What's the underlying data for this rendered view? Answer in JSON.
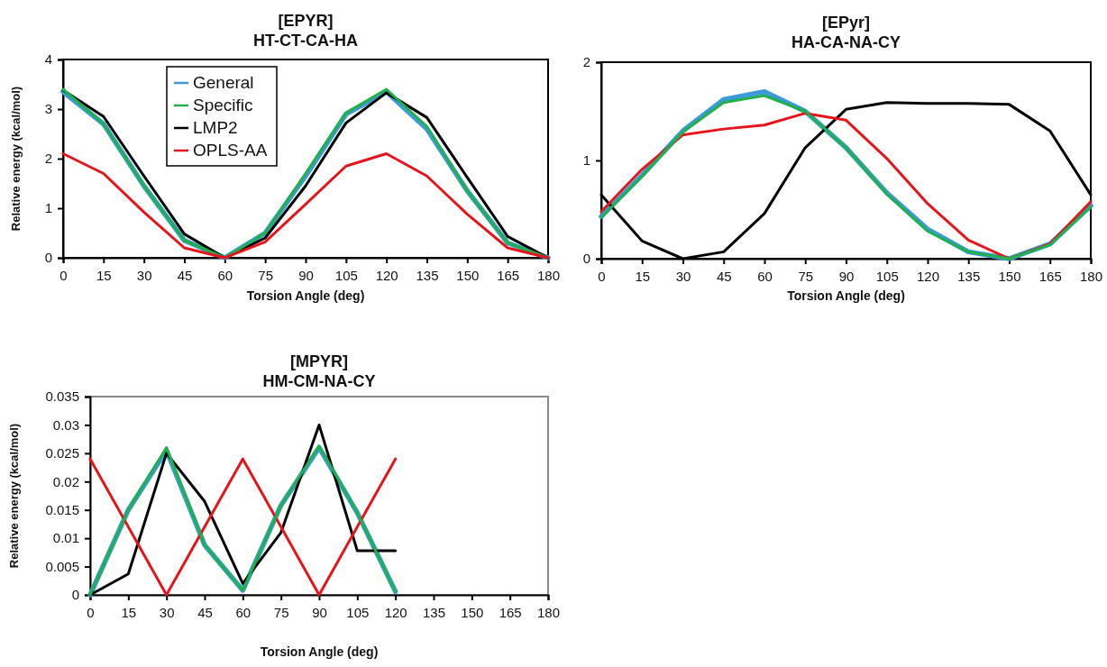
{
  "chart_data": [
    {
      "type": "line",
      "title": "[EPYR]\nHT-CT-CA-HA",
      "xlabel": "Torsion Angle (deg)",
      "ylabel": "Relative energy (kcal/mol)",
      "x": [
        0,
        15,
        30,
        45,
        60,
        75,
        90,
        105,
        120,
        135,
        150,
        165,
        180
      ],
      "xlim": [
        0,
        180
      ],
      "xticks": [
        0,
        15,
        30,
        45,
        60,
        75,
        90,
        105,
        120,
        135,
        150,
        165,
        180
      ],
      "ylim": [
        0,
        4
      ],
      "yticks": [
        0,
        1,
        2,
        3,
        4
      ],
      "legend": "top left",
      "series": [
        {
          "name": "General",
          "color": "#3d9ad8",
          "values": [
            3.35,
            2.7,
            1.45,
            0.35,
            0,
            0.5,
            1.65,
            2.9,
            3.35,
            2.6,
            1.35,
            0.3,
            0
          ]
        },
        {
          "name": "LMP2",
          "color": "#000000",
          "values": [
            3.38,
            2.85,
            1.65,
            0.48,
            0,
            0.4,
            1.45,
            2.72,
            3.33,
            2.83,
            1.62,
            0.43,
            0
          ]
        },
        {
          "name": "Specific",
          "color": "#1fb14a",
          "values": [
            3.4,
            2.7,
            1.45,
            0.35,
            0,
            0.5,
            1.7,
            2.92,
            3.4,
            2.65,
            1.35,
            0.3,
            0
          ]
        },
        {
          "name": "OPLS-AA",
          "color": "#e8141b",
          "values": [
            2.1,
            1.7,
            0.92,
            0.2,
            0,
            0.32,
            1.08,
            1.85,
            2.1,
            1.65,
            0.88,
            0.2,
            0
          ]
        }
      ]
    },
    {
      "type": "line",
      "title": "[EPyr]\nHA-CA-NA-CY",
      "xlabel": "Torsion Angle (deg)",
      "x": [
        0,
        15,
        30,
        45,
        60,
        75,
        90,
        105,
        120,
        135,
        150,
        165,
        180
      ],
      "xlim": [
        0,
        180
      ],
      "xticks": [
        0,
        15,
        30,
        45,
        60,
        75,
        90,
        105,
        120,
        135,
        150,
        165,
        180
      ],
      "ylim": [
        0,
        2
      ],
      "yticks": [
        0,
        1,
        2
      ],
      "series": [
        {
          "color": "#3d9ad8",
          "values": [
            0.43,
            0.85,
            1.3,
            1.62,
            1.7,
            1.5,
            1.13,
            0.67,
            0.3,
            0.07,
            0,
            0.15,
            0.54
          ]
        },
        {
          "color": "#000000",
          "values": [
            0.65,
            0.18,
            0,
            0.07,
            0.46,
            1.13,
            1.52,
            1.59,
            1.58,
            1.58,
            1.57,
            1.3,
            0.65
          ]
        },
        {
          "color": "#e8141b",
          "values": [
            0.48,
            0.91,
            1.26,
            1.32,
            1.36,
            1.48,
            1.41,
            1.02,
            0.56,
            0.19,
            0,
            0.15,
            0.58
          ]
        },
        {
          "color": "#1fb14a",
          "values": [
            0.42,
            0.84,
            1.29,
            1.59,
            1.66,
            1.5,
            1.13,
            0.66,
            0.28,
            0.07,
            0,
            0.14,
            0.53
          ]
        }
      ]
    },
    {
      "type": "line",
      "title": "[MPYR]\nHM-CM-NA-CY",
      "xlabel": "Torsion Angle (deg)",
      "ylabel": "Relative energy  (kcal/mol)",
      "x": [
        0,
        15,
        30,
        45,
        60,
        75,
        90,
        105,
        120
      ],
      "xlim": [
        0,
        180
      ],
      "xticks": [
        0,
        15,
        30,
        45,
        60,
        75,
        90,
        105,
        120,
        135,
        150,
        165,
        180
      ],
      "ylim": [
        0,
        0.035
      ],
      "yticks": [
        0,
        0.005,
        0.01,
        0.015,
        0.02,
        0.025,
        0.03,
        0.035
      ],
      "series": [
        {
          "color": "#3d9ad8",
          "values": [
            0,
            0.015,
            0.0255,
            0.0088,
            0.0008,
            0.0158,
            0.026,
            0.0145,
            0.0006
          ]
        },
        {
          "color": "#000000",
          "values": [
            0,
            0.0037,
            0.025,
            0.0165,
            0.002,
            0.011,
            0.03,
            0.0078,
            0.0078
          ]
        },
        {
          "color": "#e8141b",
          "values": [
            0.024,
            0.012,
            0,
            0.012,
            0.024,
            0.012,
            0,
            0.012,
            0.024
          ]
        },
        {
          "color": "#1fb14a",
          "values": [
            0,
            0.015,
            0.026,
            0.0088,
            0.0008,
            0.0158,
            0.0263,
            0.0145,
            0.0006
          ]
        }
      ]
    }
  ]
}
